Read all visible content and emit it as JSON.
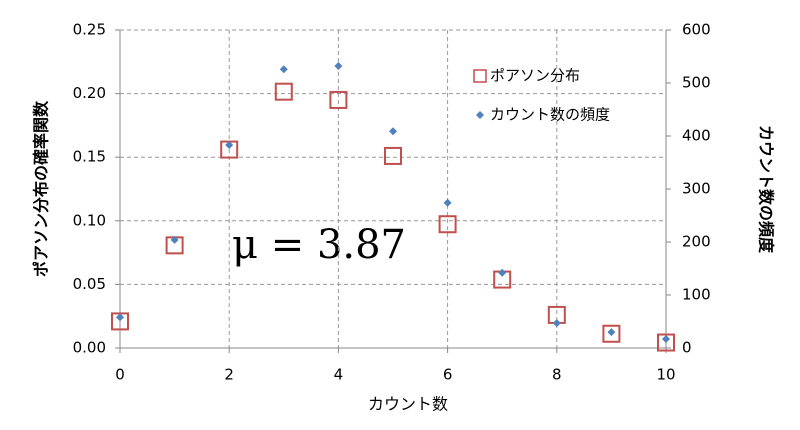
{
  "chart_data": {
    "type": "scatter",
    "x": [
      0,
      1,
      2,
      3,
      4,
      5,
      6,
      7,
      8,
      9,
      10
    ],
    "series": [
      {
        "name": "ポアソン分布",
        "color": "#c0504d",
        "marker": "square",
        "values": [
          0.0209,
          0.0807,
          0.156,
          0.2015,
          0.195,
          0.151,
          0.0973,
          0.0538,
          0.026,
          0.0112,
          0.0043
        ]
      },
      {
        "name": "カウント数の頻度",
        "color": "#4f81bd",
        "marker": "diamond",
        "axis": "y2",
        "values": [
          58,
          204,
          383,
          526,
          532,
          409,
          274,
          142,
          47,
          30,
          17
        ]
      }
    ],
    "xlabel": "カウント数",
    "ylabel": "ポアソン分布の確率関数",
    "y2label": "カウント数の頻度",
    "annotation": "μ = 3.87",
    "xlim": [
      0,
      10
    ],
    "xticks": [
      0,
      2,
      4,
      6,
      8,
      10
    ],
    "ylim": [
      0,
      0.25
    ],
    "yticks": [
      {
        "value": 0,
        "label": "0.00"
      },
      {
        "value": 0.05,
        "label": "0.05"
      },
      {
        "value": 0.1,
        "label": "0.10"
      },
      {
        "value": 0.15,
        "label": "0.15"
      },
      {
        "value": 0.2,
        "label": "0.20"
      },
      {
        "value": 0.25,
        "label": "0.25"
      }
    ],
    "y2lim": [
      0,
      600
    ],
    "y2ticks": [
      0,
      100,
      200,
      300,
      400,
      500,
      600
    ],
    "grid": true,
    "legend": "upper-right"
  }
}
